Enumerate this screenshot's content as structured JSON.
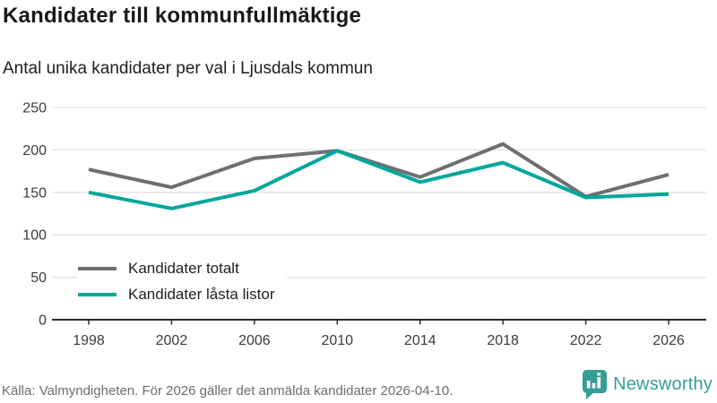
{
  "header": {
    "title": "Kandidater till kommunfullmäktige",
    "subtitle": "Antal unika kandidater per val i Ljusdals kommun"
  },
  "chart_data": {
    "type": "line",
    "title": "Kandidater till kommunfullmäktige",
    "subtitle": "Antal unika kandidater per val i Ljusdals kommun",
    "categories": [
      "1998",
      "2002",
      "2006",
      "2010",
      "2014",
      "2018",
      "2022",
      "2026"
    ],
    "series": [
      {
        "name": "Kandidater totalt",
        "color": "#6e6e73",
        "values": [
          177,
          156,
          190,
          199,
          168,
          207,
          145,
          171
        ]
      },
      {
        "name": "Kandidater låsta listor",
        "color": "#00a79b",
        "values": [
          150,
          131,
          152,
          199,
          162,
          185,
          144,
          148
        ]
      }
    ],
    "xlabel": "",
    "ylabel": "",
    "ylim": [
      0,
      250
    ],
    "yticks": [
      0,
      50,
      100,
      150,
      200,
      250
    ],
    "grid": "horizontal",
    "legend_position": "inside-bottom-left"
  },
  "footer": {
    "source": "Källa: Valmyndigheten. För 2026 gäller det anmälda kandidater 2026-04-10.",
    "brand": "Newsworthy",
    "brand_icon": "newsworthy-speech-bubble-bar-chart-icon"
  },
  "colors": {
    "accent_teal": "#00a79b",
    "series_gray": "#6e6e73",
    "gridline": "#e3e3e3",
    "axis": "#2b2b2b",
    "tick_label": "#3c3c3c",
    "brand_teal": "#359e95"
  }
}
